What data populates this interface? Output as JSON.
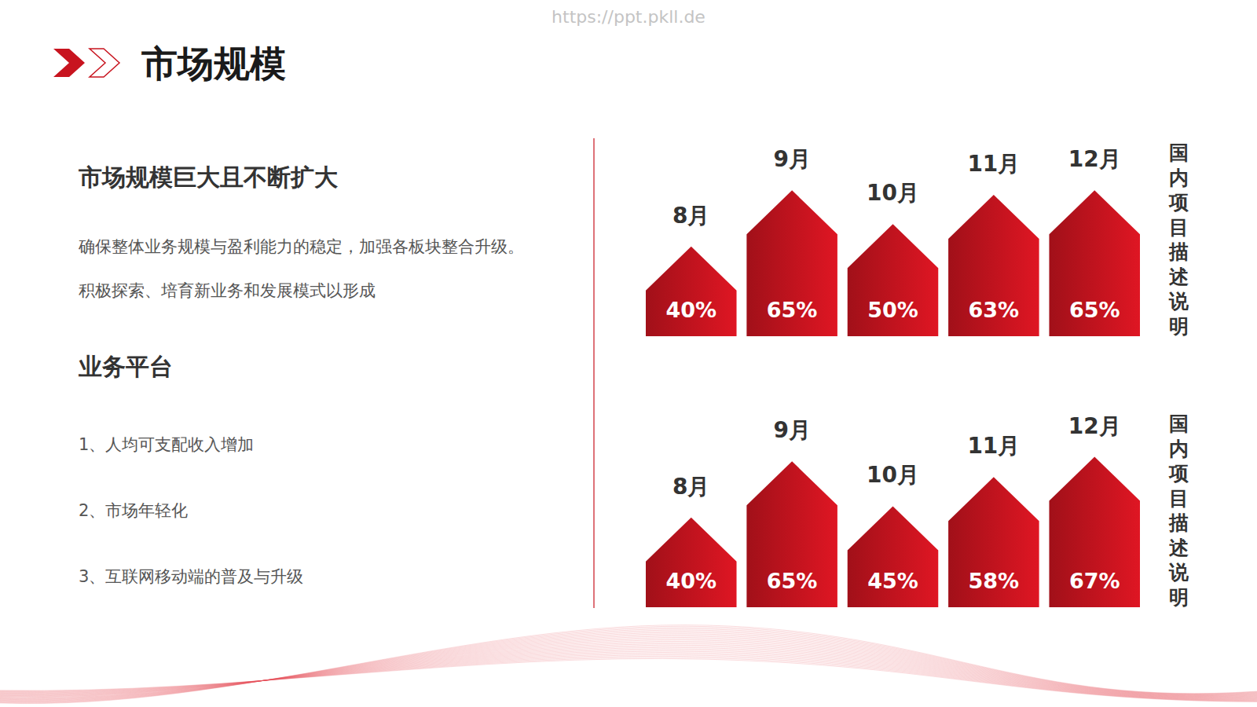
{
  "slide": {
    "watermark": "https://ppt.pkll.de",
    "title": "市场规模",
    "heading": "市场规模巨大且不断扩大",
    "paragraph": [
      "确保整体业务规模与盈利能力的稳定，加强各板块整合升级。",
      "积极探索、培育新业务和发展模式以形成"
    ],
    "subheading": "业务平台",
    "items": [
      "1、人均可支配收入增加",
      "2、市场年轻化",
      "3、互联网移动端的普及与升级"
    ]
  },
  "chart_data": [
    {
      "type": "bar",
      "title": "国内项目描述说明",
      "categories": [
        "8月",
        "9月",
        "10月",
        "11月",
        "12月"
      ],
      "values": [
        40,
        65,
        50,
        63,
        65
      ],
      "value_labels": [
        "40%",
        "65%",
        "50%",
        "63%",
        "65%"
      ],
      "color": "#c8141f",
      "ylim": [
        0,
        70
      ],
      "data_labels": true,
      "tick_labels": false,
      "grid": false
    },
    {
      "type": "bar",
      "title": "国内项目描述说明",
      "categories": [
        "8月",
        "9月",
        "10月",
        "11月",
        "12月"
      ],
      "values": [
        40,
        65,
        45,
        58,
        67
      ],
      "value_labels": [
        "40%",
        "65%",
        "45%",
        "58%",
        "67%"
      ],
      "color": "#c8141f",
      "ylim": [
        0,
        70
      ],
      "data_labels": true,
      "tick_labels": false,
      "grid": false
    }
  ]
}
